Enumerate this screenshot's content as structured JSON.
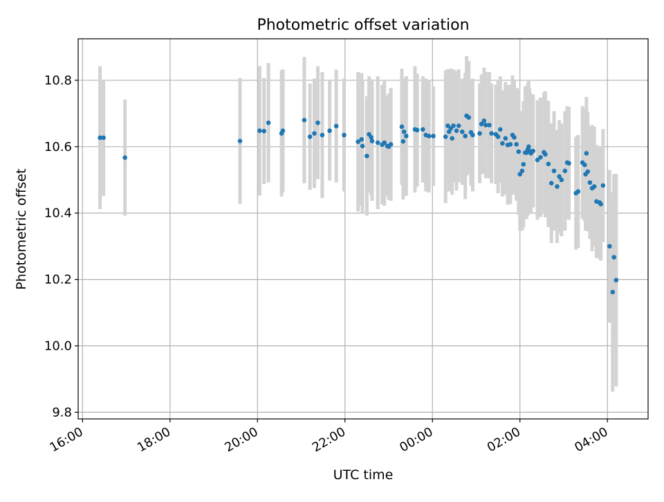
{
  "chart_data": {
    "type": "scatter",
    "title": "Photometric offset variation",
    "xlabel": "UTC time",
    "ylabel": "Photometric offset",
    "x_unit": "hours since 16:00 UTC",
    "xlim": [
      15.9,
      28.93
    ],
    "ylim": [
      9.78,
      10.925
    ],
    "grid": true,
    "x_ticks": [
      {
        "value": 16,
        "label": "16:00"
      },
      {
        "value": 18,
        "label": "18:00"
      },
      {
        "value": 20,
        "label": "20:00"
      },
      {
        "value": 22,
        "label": "22:00"
      },
      {
        "value": 24,
        "label": "00:00"
      },
      {
        "value": 26,
        "label": "02:00"
      },
      {
        "value": 28,
        "label": "04:00"
      }
    ],
    "y_ticks": [
      {
        "value": 9.8,
        "label": "9.8"
      },
      {
        "value": 10.0,
        "label": "10.0"
      },
      {
        "value": 10.2,
        "label": "10.2"
      },
      {
        "value": 10.4,
        "label": "10.4"
      },
      {
        "value": 10.6,
        "label": "10.6"
      },
      {
        "value": 10.8,
        "label": "10.8"
      }
    ],
    "colors": {
      "points": "#1f77b4",
      "errorbars": "#d3d3d3",
      "grid": "#b0b0b0"
    },
    "points": [
      [
        16.4,
        10.627,
        0.215
      ],
      [
        16.48,
        10.627,
        0.175
      ],
      [
        16.97,
        10.567,
        0.175
      ],
      [
        19.6,
        10.617,
        0.19
      ],
      [
        20.05,
        10.648,
        0.195
      ],
      [
        20.15,
        10.647,
        0.16
      ],
      [
        20.25,
        10.672,
        0.18
      ],
      [
        20.55,
        10.64,
        0.19
      ],
      [
        20.58,
        10.648,
        0.185
      ],
      [
        21.07,
        10.68,
        0.19
      ],
      [
        21.2,
        10.63,
        0.16
      ],
      [
        21.3,
        10.64,
        0.165
      ],
      [
        21.38,
        10.672,
        0.17
      ],
      [
        21.48,
        10.635,
        0.19
      ],
      [
        21.65,
        10.648,
        0.15
      ],
      [
        21.8,
        10.662,
        0.17
      ],
      [
        21.98,
        10.635,
        0.17
      ],
      [
        22.3,
        10.615,
        0.21
      ],
      [
        22.38,
        10.622,
        0.2
      ],
      [
        22.4,
        10.602,
        0.2
      ],
      [
        22.5,
        10.572,
        0.18
      ],
      [
        22.55,
        10.637,
        0.175
      ],
      [
        22.6,
        10.628,
        0.175
      ],
      [
        22.62,
        10.617,
        0.18
      ],
      [
        22.75,
        10.612,
        0.2
      ],
      [
        22.85,
        10.606,
        0.18
      ],
      [
        22.9,
        10.612,
        0.19
      ],
      [
        22.97,
        10.602,
        0.15
      ],
      [
        23.0,
        10.6,
        0.16
      ],
      [
        23.05,
        10.607,
        0.17
      ],
      [
        23.3,
        10.66,
        0.175
      ],
      [
        23.33,
        10.616,
        0.175
      ],
      [
        23.35,
        10.645,
        0.16
      ],
      [
        23.4,
        10.632,
        0.18
      ],
      [
        23.6,
        10.652,
        0.19
      ],
      [
        23.65,
        10.65,
        0.17
      ],
      [
        23.78,
        10.652,
        0.16
      ],
      [
        23.85,
        10.635,
        0.17
      ],
      [
        23.92,
        10.632,
        0.17
      ],
      [
        24.02,
        10.632,
        0.15
      ],
      [
        24.3,
        10.63,
        0.2
      ],
      [
        24.35,
        10.663,
        0.17
      ],
      [
        24.38,
        10.645,
        0.18
      ],
      [
        24.42,
        10.655,
        0.18
      ],
      [
        24.45,
        10.625,
        0.17
      ],
      [
        24.48,
        10.663,
        0.17
      ],
      [
        24.55,
        10.648,
        0.18
      ],
      [
        24.6,
        10.663,
        0.17
      ],
      [
        24.68,
        10.645,
        0.16
      ],
      [
        24.75,
        10.632,
        0.19
      ],
      [
        24.78,
        10.693,
        0.18
      ],
      [
        24.83,
        10.688,
        0.17
      ],
      [
        24.88,
        10.643,
        0.16
      ],
      [
        24.92,
        10.635,
        0.17
      ],
      [
        25.08,
        10.64,
        0.15
      ],
      [
        25.12,
        10.668,
        0.15
      ],
      [
        25.18,
        10.678,
        0.16
      ],
      [
        25.22,
        10.665,
        0.16
      ],
      [
        25.3,
        10.665,
        0.16
      ],
      [
        25.35,
        10.64,
        0.15
      ],
      [
        25.45,
        10.637,
        0.15
      ],
      [
        25.5,
        10.63,
        0.17
      ],
      [
        25.55,
        10.652,
        0.16
      ],
      [
        25.6,
        10.61,
        0.16
      ],
      [
        25.67,
        10.625,
        0.17
      ],
      [
        25.72,
        10.605,
        0.18
      ],
      [
        25.78,
        10.607,
        0.18
      ],
      [
        25.83,
        10.635,
        0.18
      ],
      [
        25.87,
        10.628,
        0.17
      ],
      [
        25.92,
        10.607,
        0.17
      ],
      [
        25.97,
        10.585,
        0.19
      ],
      [
        26.0,
        10.517,
        0.17
      ],
      [
        26.05,
        10.527,
        0.18
      ],
      [
        26.08,
        10.547,
        0.19
      ],
      [
        26.12,
        10.582,
        0.2
      ],
      [
        26.15,
        10.582,
        0.2
      ],
      [
        26.18,
        10.592,
        0.2
      ],
      [
        26.2,
        10.6,
        0.2
      ],
      [
        26.22,
        10.587,
        0.19
      ],
      [
        26.25,
        10.58,
        0.18
      ],
      [
        26.3,
        10.587,
        0.17
      ],
      [
        26.4,
        10.56,
        0.18
      ],
      [
        26.47,
        10.568,
        0.18
      ],
      [
        26.55,
        10.583,
        0.18
      ],
      [
        26.58,
        10.577,
        0.19
      ],
      [
        26.65,
        10.548,
        0.19
      ],
      [
        26.72,
        10.49,
        0.18
      ],
      [
        26.78,
        10.527,
        0.18
      ],
      [
        26.85,
        10.48,
        0.17
      ],
      [
        26.9,
        10.51,
        0.17
      ],
      [
        26.95,
        10.5,
        0.17
      ],
      [
        27.03,
        10.527,
        0.18
      ],
      [
        27.08,
        10.552,
        0.17
      ],
      [
        27.12,
        10.55,
        0.17
      ],
      [
        27.28,
        10.46,
        0.17
      ],
      [
        27.33,
        10.465,
        0.17
      ],
      [
        27.43,
        10.552,
        0.17
      ],
      [
        27.48,
        10.545,
        0.17
      ],
      [
        27.5,
        10.517,
        0.17
      ],
      [
        27.52,
        10.58,
        0.17
      ],
      [
        27.55,
        10.525,
        0.18
      ],
      [
        27.6,
        10.492,
        0.17
      ],
      [
        27.65,
        10.475,
        0.19
      ],
      [
        27.7,
        10.48,
        0.18
      ],
      [
        27.75,
        10.435,
        0.17
      ],
      [
        27.82,
        10.432,
        0.17
      ],
      [
        27.85,
        10.427,
        0.17
      ],
      [
        27.9,
        10.483,
        0.17
      ],
      [
        28.05,
        10.3,
        0.23
      ],
      [
        28.12,
        10.162,
        0.3
      ],
      [
        28.15,
        10.267,
        0.25
      ],
      [
        28.2,
        10.198,
        0.32
      ]
    ]
  }
}
